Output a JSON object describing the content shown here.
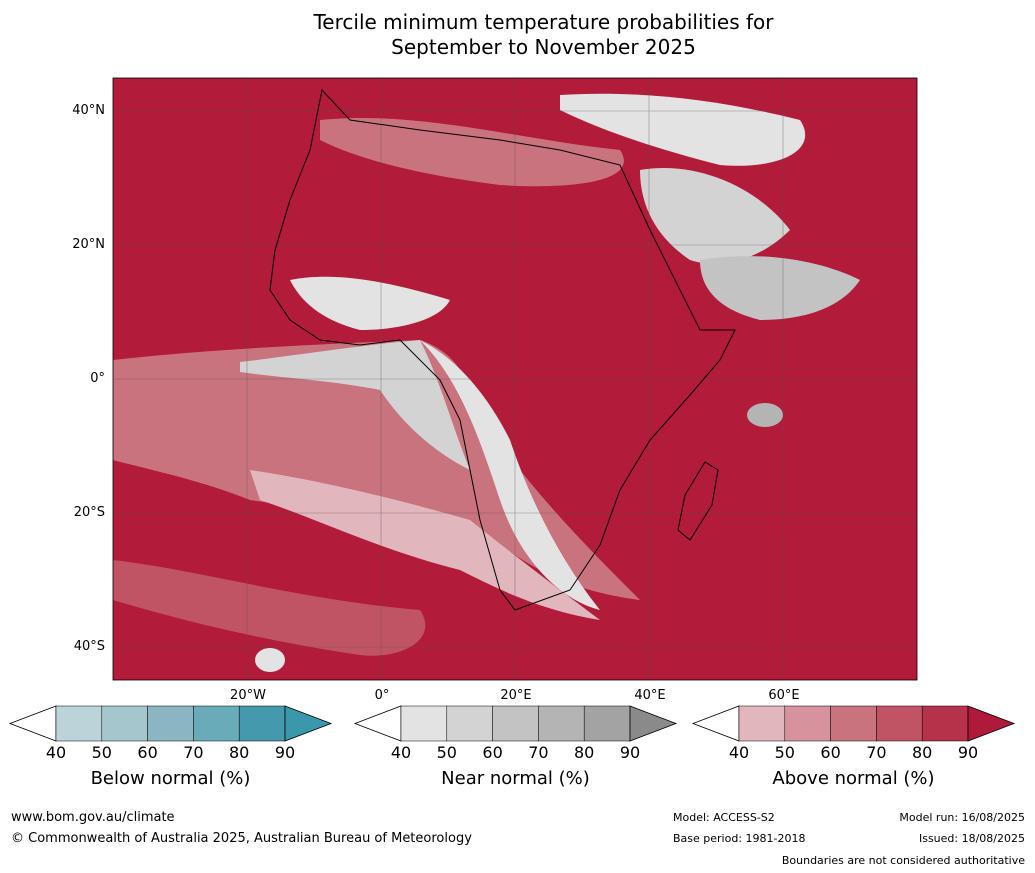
{
  "title_line1": "Tercile minimum temperature probabilities for",
  "title_line2": "September to November 2025",
  "lat_labels": [
    "40°N",
    "20°N",
    "0°",
    "20°S",
    "40°S"
  ],
  "lon_labels": [
    "20°W",
    "0°",
    "20°E",
    "40°E",
    "60°E"
  ],
  "colorbars": [
    {
      "name": "below",
      "title": "Below normal (%)",
      "ticks": [
        "40",
        "50",
        "60",
        "70",
        "80",
        "90"
      ],
      "colors": [
        "#ffffff",
        "#bcd3da",
        "#a6c6cd",
        "#8bb5c0",
        "#6aabb9",
        "#4499ac",
        "#3a98ad"
      ]
    },
    {
      "name": "near",
      "title": "Near normal (%)",
      "ticks": [
        "40",
        "50",
        "60",
        "70",
        "80",
        "90"
      ],
      "colors": [
        "#ffffff",
        "#e3e3e3",
        "#d3d3d3",
        "#c3c3c3",
        "#b4b4b4",
        "#a3a3a3",
        "#8a8a8a"
      ]
    },
    {
      "name": "above",
      "title": "Above normal (%)",
      "ticks": [
        "40",
        "50",
        "60",
        "70",
        "80",
        "90"
      ],
      "colors": [
        "#ffffff",
        "#e2b6bd",
        "#d6939d",
        "#c9737f",
        "#c05464",
        "#b5324a",
        "#b01a3a"
      ]
    }
  ],
  "colors": {
    "ocean_above": "#b31b3a",
    "land_line": "#000000",
    "border": "#7f7f7f"
  },
  "footer": {
    "site": "www.bom.gov.au/climate",
    "copyright": "© Commonwealth of Australia 2025, Australian Bureau of Meteorology",
    "model": "Model: ACCESS-S2",
    "base_period": "Base period: 1981-2018",
    "model_run": "Model run: 16/08/2025",
    "issued": "Issued: 18/08/2025",
    "boundaries": "Boundaries are not considered authoritative"
  }
}
